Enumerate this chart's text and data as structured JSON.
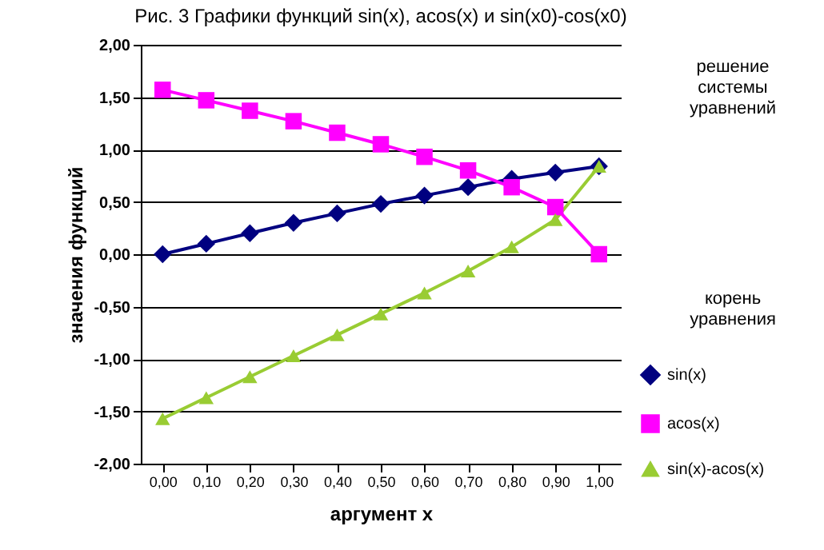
{
  "chart_data": {
    "type": "line",
    "title": "Рис. 3 Графики функций sin(x), acos(x) и sin(x0)-cos(x0)",
    "xlabel": "аргумент x",
    "ylabel": "значения функций",
    "categories": [
      "0,00",
      "0,10",
      "0,20",
      "0,30",
      "0,40",
      "0,50",
      "0,60",
      "0,70",
      "0,80",
      "0,90",
      "1,00"
    ],
    "series": [
      {
        "name": "sin(x)",
        "color": "#000080",
        "marker": "diamond",
        "values": [
          0,
          0.1,
          0.2,
          0.3,
          0.39,
          0.48,
          0.56,
          0.64,
          0.72,
          0.78,
          0.84
        ]
      },
      {
        "name": "acos(x)",
        "color": "#ff00ff",
        "marker": "square",
        "values": [
          1.57,
          1.47,
          1.37,
          1.27,
          1.16,
          1.05,
          0.93,
          0.8,
          0.64,
          0.45,
          0
        ]
      },
      {
        "name": "sin(x)-acos(x)",
        "color": "#99cc33",
        "marker": "triangle",
        "values": [
          -1.57,
          -1.37,
          -1.17,
          -0.97,
          -0.77,
          -0.57,
          -0.37,
          -0.16,
          0.07,
          0.33,
          0.84
        ]
      }
    ],
    "ylim": [
      -2,
      2
    ],
    "yticks": [
      {
        "value": -2,
        "label": "-2,00"
      },
      {
        "value": -1.5,
        "label": "-1,50"
      },
      {
        "value": -1,
        "label": "-1,00"
      },
      {
        "value": -0.5,
        "label": "-0,50"
      },
      {
        "value": 0,
        "label": "0,00"
      },
      {
        "value": 0.5,
        "label": "0,50"
      },
      {
        "value": 1,
        "label": "1,00"
      },
      {
        "value": 1.5,
        "label": "1,50"
      },
      {
        "value": 2,
        "label": "2,00"
      }
    ],
    "grid": "y",
    "legend": "bottom right",
    "annotations": [
      "решение системы уравнений",
      "корень уравнения"
    ]
  }
}
